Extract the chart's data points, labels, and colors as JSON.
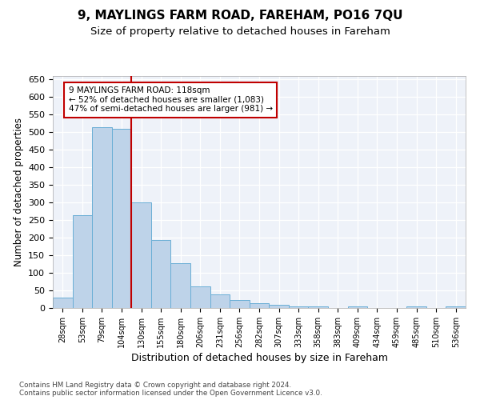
{
  "title": "9, MAYLINGS FARM ROAD, FAREHAM, PO16 7QU",
  "subtitle": "Size of property relative to detached houses in Fareham",
  "xlabel": "Distribution of detached houses by size in Fareham",
  "ylabel": "Number of detached properties",
  "footnote1": "Contains HM Land Registry data © Crown copyright and database right 2024.",
  "footnote2": "Contains public sector information licensed under the Open Government Licence v3.0.",
  "categories": [
    "28sqm",
    "53sqm",
    "79sqm",
    "104sqm",
    "130sqm",
    "155sqm",
    "180sqm",
    "206sqm",
    "231sqm",
    "256sqm",
    "282sqm",
    "307sqm",
    "333sqm",
    "358sqm",
    "383sqm",
    "409sqm",
    "434sqm",
    "459sqm",
    "485sqm",
    "510sqm",
    "536sqm"
  ],
  "values": [
    30,
    265,
    515,
    510,
    300,
    193,
    128,
    62,
    38,
    22,
    14,
    9,
    5,
    4,
    0,
    5,
    0,
    0,
    5,
    0,
    5
  ],
  "bar_color": "#bed3e9",
  "bar_edge_color": "#6aaed6",
  "property_line_x": 3.5,
  "property_line_color": "#c00000",
  "annotation_line1": "9 MAYLINGS FARM ROAD: 118sqm",
  "annotation_line2": "← 52% of detached houses are smaller (1,083)",
  "annotation_line3": "47% of semi-detached houses are larger (981) →",
  "annotation_box_edgecolor": "#c00000",
  "ylim": [
    0,
    660
  ],
  "yticks": [
    0,
    50,
    100,
    150,
    200,
    250,
    300,
    350,
    400,
    450,
    500,
    550,
    600,
    650
  ],
  "bg_color": "#eef2f9",
  "grid_color": "#ffffff",
  "title_fontsize": 11,
  "subtitle_fontsize": 9.5,
  "xlabel_fontsize": 9,
  "ylabel_fontsize": 8.5,
  "tick_fontsize": 8,
  "annot_fontsize": 7.5
}
